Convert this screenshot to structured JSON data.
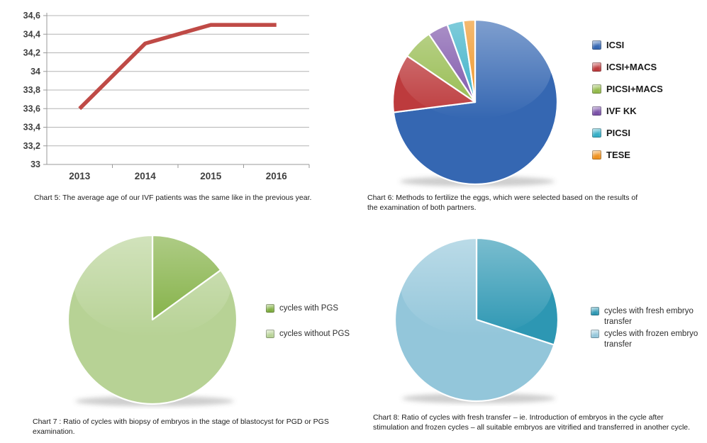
{
  "page_title": "IVF annual report charts",
  "chart_data": [
    {
      "id": "chart5",
      "type": "line",
      "caption": "Chart 5: The average age of our IVF patients was the same like in the previous year.",
      "categories": [
        "2013",
        "2014",
        "2015",
        "2016"
      ],
      "values": [
        33.6,
        34.3,
        34.5,
        34.5
      ],
      "ylim": [
        33,
        34.6
      ],
      "ytick_step": 0.2,
      "ytick_labels": [
        "33",
        "33,2",
        "33,4",
        "33,6",
        "33,8",
        "34",
        "34,2",
        "34,4",
        "34,6"
      ],
      "line_color": "#bf4a46",
      "grid_color": "#b4b4b4",
      "axis_color": "#9a9a9a",
      "label_color": "#3f3f3f",
      "grid": true,
      "legend_position": "none"
    },
    {
      "id": "chart6",
      "type": "pie",
      "caption": "Chart 6: Methods to fertilize the eggs, which were selected based on the results of the examination of both partners.",
      "start_angle_deg": 0,
      "legend_position": "right",
      "slices": [
        {
          "label": "ICSI",
          "value": 73,
          "color": "#3567b2"
        },
        {
          "label": "ICSI+MACS",
          "value": 11.5,
          "color": "#bd3b3d"
        },
        {
          "label": "PICSI+MACS",
          "value": 6,
          "color": "#94ba4c"
        },
        {
          "label": "IVF KK",
          "value": 4,
          "color": "#7b52a8"
        },
        {
          "label": "PICSI",
          "value": 3.2,
          "color": "#35aec6"
        },
        {
          "label": "TESE",
          "value": 2.3,
          "color": "#ef921f"
        }
      ]
    },
    {
      "id": "chart7",
      "type": "pie",
      "caption": "Chart 7 : Ratio of cycles with biopsy of embryos in the stage of blastocyst for PGD or PGS examination.",
      "start_angle_deg": 0,
      "legend_position": "right",
      "slices": [
        {
          "label": "cycles with PGS",
          "value": 15,
          "color": "#7fae3f"
        },
        {
          "label": "cycles without PGS",
          "value": 85,
          "color": "#b7d295"
        }
      ]
    },
    {
      "id": "chart8",
      "type": "pie",
      "caption": "Chart 8: Ratio of cycles with fresh transfer – ie. Introduction of embryos in the cycle after stimulation and frozen cycles – all suitable embryos are vitrified and transferred in another cycle.",
      "start_angle_deg": 0,
      "legend_position": "right",
      "slices": [
        {
          "label": "cycles with fresh embryo transfer",
          "value": 30,
          "color": "#2d97b3"
        },
        {
          "label": "cycles with frozen embryo transfer",
          "value": 70,
          "color": "#93c6da"
        }
      ]
    }
  ]
}
